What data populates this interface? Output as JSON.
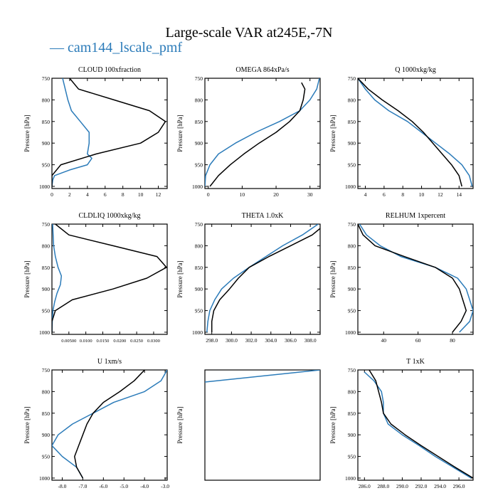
{
  "title": "Large-scale VAR at245E,-7N",
  "legend_entries": [
    {
      "label": "cam144_lscale_pmf",
      "symbol": "—",
      "color": "#2b7bb9"
    }
  ],
  "series_colors": {
    "model": "#2b7bb9",
    "reference": "#000000"
  },
  "chart_data": [
    {
      "type": "line",
      "title": "CLOUD  100xfraction",
      "ylabel": "Pressure [hPa]",
      "xlim": [
        0,
        13
      ],
      "ylim": [
        750,
        1005
      ],
      "y_inverted": true,
      "xticks": [
        0,
        2,
        4,
        6,
        8,
        10,
        12
      ],
      "xtick_labels": [
        "0",
        "2",
        "4",
        "6",
        "8",
        "10",
        "12"
      ],
      "yticks": [
        750,
        800,
        850,
        900,
        950,
        1000
      ],
      "ytick_labels": [
        "750",
        "800",
        "850",
        "900",
        "950",
        "1000"
      ],
      "series": [
        {
          "color": "#2b7bb9",
          "y": [
            750,
            775,
            800,
            825,
            850,
            875,
            900,
            925,
            935,
            950,
            962,
            975,
            985,
            1000
          ],
          "x": [
            1.2,
            1.5,
            1.8,
            2.2,
            3.2,
            4.2,
            4.2,
            4.0,
            4.5,
            4.0,
            2.0,
            0.3,
            0.1,
            0.0
          ]
        },
        {
          "color": "#000000",
          "y": [
            750,
            775,
            800,
            825,
            850,
            875,
            900,
            925,
            950,
            975,
            1000
          ],
          "x": [
            2.0,
            3.0,
            7.0,
            11.0,
            12.8,
            12.0,
            10.0,
            5.0,
            1.0,
            0.0,
            0.0
          ]
        }
      ]
    },
    {
      "type": "line",
      "title": "OMEGA  864xPa/s",
      "ylabel": "Pressure [hPa]",
      "xlim": [
        -1,
        33
      ],
      "ylim": [
        750,
        1005
      ],
      "y_inverted": true,
      "xticks": [
        0,
        10,
        20,
        30
      ],
      "xtick_labels": [
        "0",
        "10",
        "20",
        "30"
      ],
      "yticks": [
        750,
        800,
        850,
        900,
        950,
        1000
      ],
      "ytick_labels": [
        "750",
        "800",
        "850",
        "900",
        "950",
        "1000"
      ],
      "series": [
        {
          "color": "#2b7bb9",
          "y": [
            750,
            775,
            800,
            825,
            850,
            875,
            900,
            925,
            950,
            975,
            1000
          ],
          "x": [
            32.8,
            32.0,
            30.0,
            27.0,
            21.0,
            14.0,
            8.0,
            3.0,
            0.5,
            -0.8,
            -1.0
          ]
        },
        {
          "color": "#000000",
          "y": [
            760,
            775,
            800,
            825,
            850,
            875,
            900,
            925,
            950,
            975,
            1000
          ],
          "x": [
            27.5,
            28.5,
            28.0,
            27.0,
            24.0,
            20.0,
            15.0,
            10.5,
            6.5,
            3.0,
            0.5
          ]
        }
      ]
    },
    {
      "type": "line",
      "title": "Q  1000xkg/kg",
      "ylabel": "Pressure [hPa]",
      "xlim": [
        3.2,
        15.5
      ],
      "ylim": [
        750,
        1005
      ],
      "y_inverted": true,
      "xticks": [
        4,
        6,
        8,
        10,
        12,
        14
      ],
      "xtick_labels": [
        "4",
        "6",
        "8",
        "10",
        "12",
        "14"
      ],
      "yticks": [
        750,
        800,
        850,
        900,
        950,
        1000
      ],
      "ytick_labels": [
        "750",
        "800",
        "850",
        "900",
        "950",
        "1000"
      ],
      "series": [
        {
          "color": "#2b7bb9",
          "y": [
            750,
            775,
            800,
            825,
            850,
            875,
            900,
            925,
            950,
            975,
            1000
          ],
          "x": [
            3.2,
            4.0,
            5.0,
            6.5,
            8.5,
            10.0,
            11.5,
            13.0,
            14.3,
            15.1,
            15.4
          ]
        },
        {
          "color": "#000000",
          "y": [
            750,
            775,
            800,
            825,
            850,
            875,
            900,
            925,
            950,
            975,
            1000
          ],
          "x": [
            3.2,
            4.3,
            5.8,
            7.5,
            9.0,
            10.2,
            11.2,
            12.2,
            13.2,
            14.0,
            14.3
          ]
        }
      ]
    },
    {
      "type": "line",
      "title": "CLDLIQ  1000xkg/kg",
      "ylabel": "Pressure [hPa]",
      "xlim": [
        0,
        0.034
      ],
      "ylim": [
        750,
        1005
      ],
      "y_inverted": true,
      "xticks": [
        0.005,
        0.01,
        0.015,
        0.02,
        0.025,
        0.03
      ],
      "xtick_labels": [
        "0.00500",
        "0.0100",
        "0.0150",
        "0.0200",
        "0.0250",
        "0.0300"
      ],
      "yticks": [
        750,
        800,
        850,
        900,
        950,
        1000
      ],
      "ytick_labels": [
        "750",
        "800",
        "850",
        "900",
        "950",
        "1000"
      ],
      "series": [
        {
          "color": "#2b7bb9",
          "y": [
            750,
            800,
            825,
            850,
            870,
            890,
            910,
            930,
            950,
            975,
            1000
          ],
          "x": [
            0.0002,
            0.0005,
            0.001,
            0.0018,
            0.0028,
            0.0025,
            0.0015,
            0.0008,
            0.0003,
            0.0001,
            0.0
          ]
        },
        {
          "color": "#000000",
          "y": [
            750,
            775,
            800,
            825,
            850,
            875,
            900,
            925,
            950,
            975,
            1000
          ],
          "x": [
            0.001,
            0.005,
            0.018,
            0.031,
            0.0338,
            0.028,
            0.018,
            0.006,
            0.001,
            0.0,
            0.0
          ]
        }
      ]
    },
    {
      "type": "line",
      "title": "THETA  1.0xK",
      "ylabel": "Pressure [hPa]",
      "xlim": [
        297.3,
        309.0
      ],
      "ylim": [
        750,
        1005
      ],
      "y_inverted": true,
      "xticks": [
        298,
        300,
        302,
        304,
        306,
        308
      ],
      "xtick_labels": [
        "298.0",
        "300.0",
        "302.0",
        "304.0",
        "306.0",
        "308.0"
      ],
      "yticks": [
        750,
        800,
        850,
        900,
        950,
        1000
      ],
      "ytick_labels": [
        "750",
        "800",
        "850",
        "900",
        "950",
        "1000"
      ],
      "series": [
        {
          "color": "#2b7bb9",
          "y": [
            750,
            775,
            800,
            825,
            850,
            875,
            900,
            925,
            950,
            975,
            1000
          ],
          "x": [
            308.8,
            307.2,
            305.2,
            303.5,
            301.8,
            300.2,
            299.0,
            298.3,
            297.8,
            297.6,
            297.5
          ]
        },
        {
          "color": "#000000",
          "y": [
            760,
            775,
            800,
            825,
            850,
            875,
            900,
            925,
            950,
            975,
            1000
          ],
          "x": [
            309.0,
            308.2,
            306.0,
            303.8,
            301.8,
            300.7,
            299.8,
            298.8,
            298.2,
            298.0,
            298.0
          ]
        }
      ]
    },
    {
      "type": "line",
      "title": "RELHUM  1xpercent",
      "ylabel": "Pressure [hPa]",
      "xlim": [
        25,
        92
      ],
      "ylim": [
        750,
        1005
      ],
      "y_inverted": true,
      "xticks": [
        40,
        60,
        80
      ],
      "xtick_labels": [
        "40",
        "60",
        "80"
      ],
      "yticks": [
        750,
        800,
        850,
        900,
        950,
        1000
      ],
      "ytick_labels": [
        "750",
        "800",
        "850",
        "900",
        "950",
        "1000"
      ],
      "series": [
        {
          "color": "#2b7bb9",
          "y": [
            750,
            775,
            800,
            825,
            850,
            875,
            900,
            925,
            950,
            975,
            1000
          ],
          "x": [
            26,
            30,
            38,
            50,
            70,
            83,
            88,
            90,
            92,
            90,
            84
          ]
        },
        {
          "color": "#000000",
          "y": [
            750,
            775,
            800,
            825,
            850,
            875,
            900,
            925,
            950,
            975,
            1000
          ],
          "x": [
            25,
            28,
            35,
            52,
            70,
            80,
            84,
            86,
            88,
            85,
            80
          ]
        }
      ]
    },
    {
      "type": "line",
      "title": "U  1xm/s",
      "ylabel": "Pressure [hPa]",
      "xlim": [
        -8.5,
        -2.9
      ],
      "ylim": [
        750,
        1005
      ],
      "y_inverted": true,
      "xticks": [
        -8,
        -7,
        -6,
        -5,
        -4,
        -3
      ],
      "xtick_labels": [
        "-8.0",
        "-7.0",
        "-6.0",
        "-5.0",
        "-4.0",
        "-3.0"
      ],
      "yticks": [
        750,
        800,
        850,
        900,
        950,
        1000
      ],
      "ytick_labels": [
        "750",
        "800",
        "850",
        "900",
        "950",
        "1000"
      ],
      "series": [
        {
          "color": "#2b7bb9",
          "y": [
            750,
            775,
            800,
            825,
            850,
            875,
            900,
            925,
            950,
            975,
            1000
          ],
          "x": [
            -2.9,
            -3.2,
            -4.0,
            -5.5,
            -6.5,
            -7.5,
            -8.2,
            -8.5,
            -8.0,
            -7.3,
            -7.0
          ]
        },
        {
          "color": "#000000",
          "y": [
            750,
            775,
            800,
            825,
            850,
            875,
            900,
            925,
            950,
            975,
            1000
          ],
          "x": [
            -4.0,
            -4.5,
            -5.2,
            -6.0,
            -6.5,
            -6.8,
            -7.0,
            -7.2,
            -7.4,
            -7.3,
            -7.0
          ]
        }
      ]
    },
    {
      "type": "line",
      "title": "",
      "ylabel": "Pressure [hPa]",
      "xlim": [
        0,
        1
      ],
      "ylim": [
        750,
        1005
      ],
      "y_inverted": true,
      "xticks": [],
      "xtick_labels": [],
      "yticks": [],
      "ytick_labels": [],
      "series": [
        {
          "color": "#2b7bb9",
          "y": [
            778,
            750
          ],
          "x": [
            0.0,
            1.0
          ]
        }
      ]
    },
    {
      "type": "line",
      "title": "T  1xK",
      "ylabel": "Pressure [hPa]",
      "xlim": [
        285.3,
        297.5
      ],
      "ylim": [
        750,
        1005
      ],
      "y_inverted": true,
      "xticks": [
        286,
        288,
        290,
        292,
        294,
        296
      ],
      "xtick_labels": [
        "286.0",
        "288.0",
        "290.0",
        "292.0",
        "294.0",
        "296.0"
      ],
      "yticks": [
        750,
        800,
        850,
        900,
        950,
        1000
      ],
      "ytick_labels": [
        "750",
        "800",
        "850",
        "900",
        "950",
        "1000"
      ],
      "series": [
        {
          "color": "#2b7bb9",
          "y": [
            755,
            775,
            800,
            825,
            850,
            875,
            900,
            925,
            950,
            975,
            1000
          ],
          "x": [
            286.0,
            287.0,
            287.8,
            288.0,
            288.0,
            288.5,
            290.0,
            291.8,
            293.5,
            295.4,
            297.3
          ]
        },
        {
          "color": "#000000",
          "y": [
            750,
            775,
            800,
            825,
            850,
            875,
            900,
            925,
            950,
            975,
            1000
          ],
          "x": [
            286.5,
            287.2,
            287.5,
            287.8,
            288.0,
            288.8,
            290.3,
            292.0,
            293.8,
            295.6,
            297.5
          ]
        }
      ]
    }
  ]
}
